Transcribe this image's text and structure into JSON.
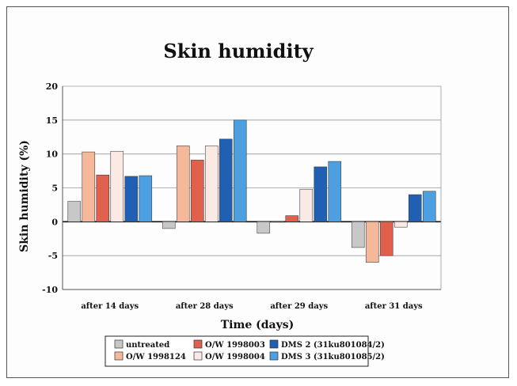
{
  "chart_data": {
    "type": "bar",
    "title": "Skin humidity",
    "xlabel": "Time (days)",
    "ylabel": "Skin humidity (%)",
    "ylim": [
      -10,
      20
    ],
    "yticks": [
      20,
      15,
      10,
      5,
      0,
      -5,
      -10
    ],
    "grid": true,
    "legend_position": "bottom",
    "categories": [
      "after 14 days",
      "after 28 days",
      "after 29 days",
      "after 31 days"
    ],
    "series": [
      {
        "name": "untreated",
        "color": "#c8c8c8",
        "values": [
          3.0,
          -1.0,
          -1.7,
          -3.8
        ]
      },
      {
        "name": "O/W 1998124",
        "color": "#f6b89a",
        "values": [
          10.3,
          11.2,
          0.0,
          -6.0
        ]
      },
      {
        "name": "O/W 1998003",
        "color": "#e0604c",
        "values": [
          6.9,
          9.1,
          0.9,
          -5.0
        ]
      },
      {
        "name": "O/W 1998004",
        "color": "#fbe9e4",
        "values": [
          10.4,
          11.2,
          4.8,
          -0.8
        ]
      },
      {
        "name": "DMS 2 (31ku801084/2)",
        "color": "#1f5fb4",
        "values": [
          6.7,
          12.2,
          8.1,
          4.0
        ]
      },
      {
        "name": "DMS 3 (31ku801085/2)",
        "color": "#4c9fe0",
        "values": [
          6.8,
          15.0,
          8.9,
          4.5
        ]
      }
    ]
  }
}
